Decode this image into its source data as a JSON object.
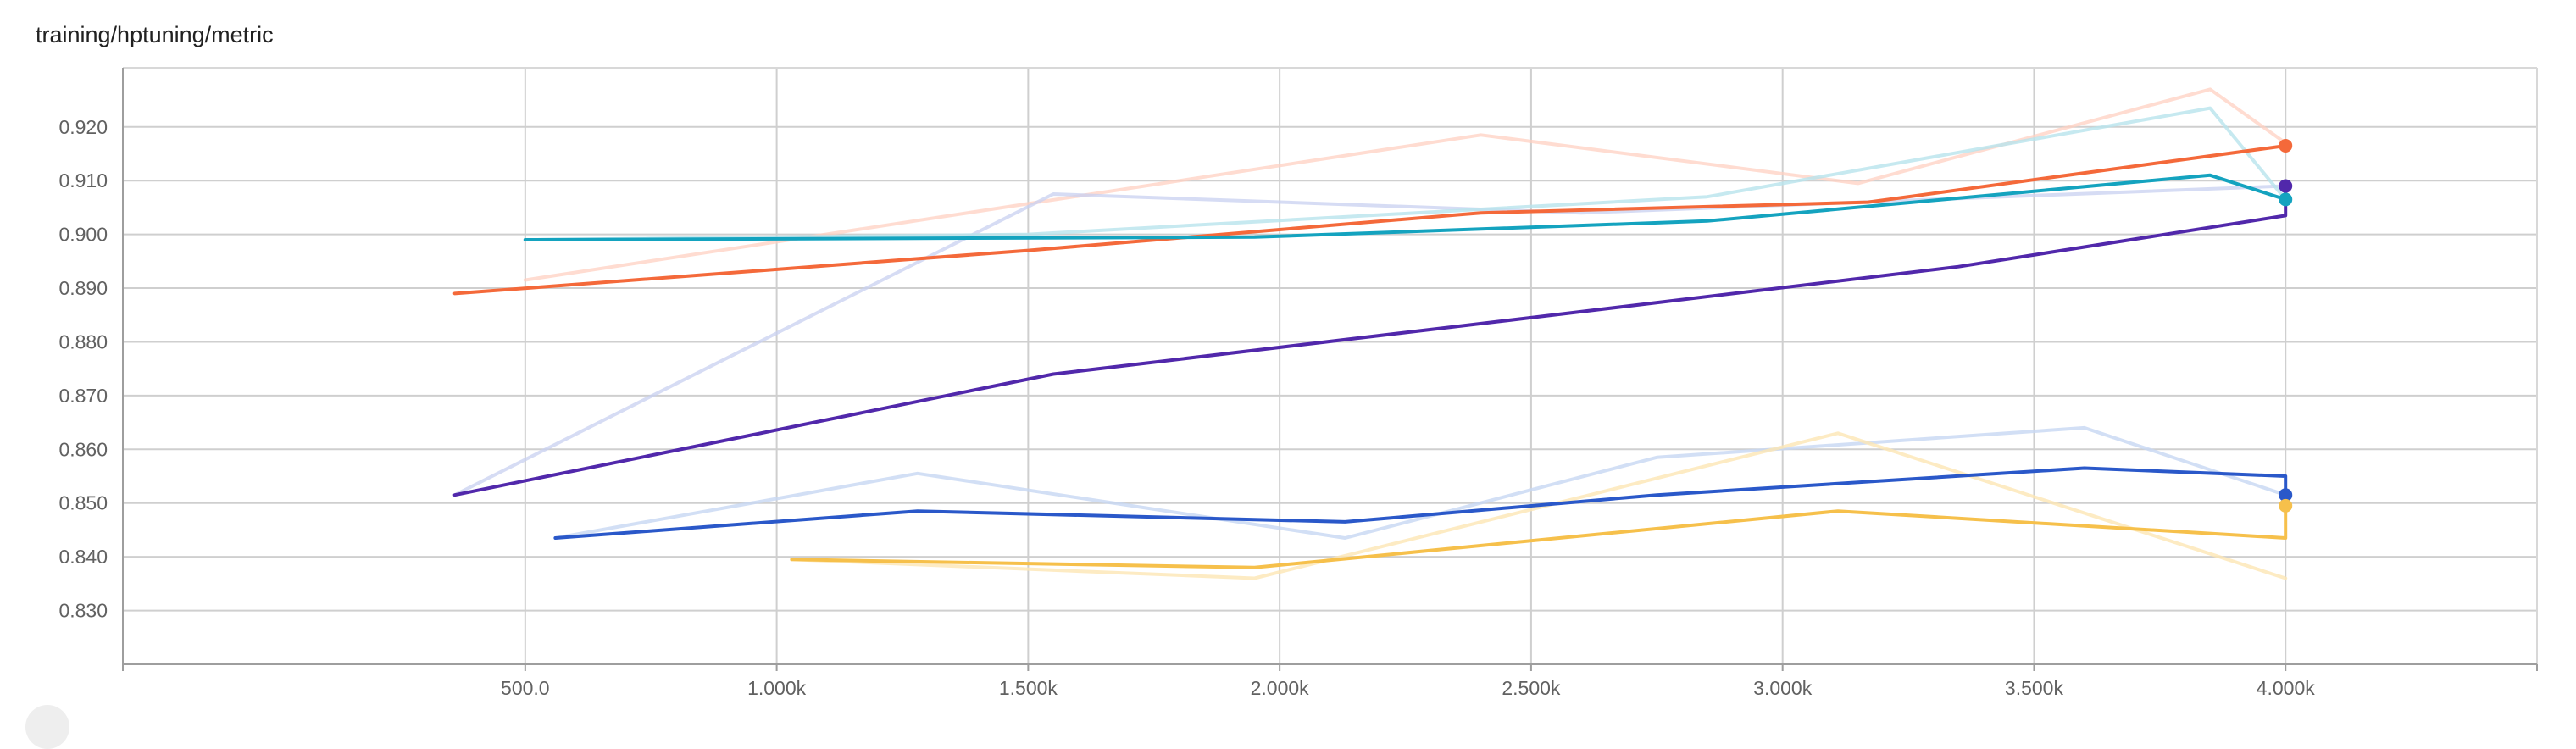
{
  "chart_data": {
    "type": "line",
    "title": "training/hptuning/metric",
    "xlabel": "",
    "ylabel": "",
    "xlim": [
      -300,
      4500
    ],
    "ylim": [
      0.82,
      0.931
    ],
    "x_ticks": [
      500,
      1000,
      1500,
      2000,
      2500,
      3000,
      3500,
      4000
    ],
    "x_tick_labels": [
      "500.0",
      "1.000k",
      "1.500k",
      "2.000k",
      "2.500k",
      "3.000k",
      "3.500k",
      "4.000k"
    ],
    "y_ticks": [
      0.83,
      0.84,
      0.85,
      0.86,
      0.87,
      0.88,
      0.89,
      0.9,
      0.91,
      0.92
    ],
    "y_tick_labels": [
      "0.830",
      "0.840",
      "0.850",
      "0.860",
      "0.870",
      "0.880",
      "0.890",
      "0.900",
      "0.910",
      "0.920"
    ],
    "grid": true,
    "series": [
      {
        "color": "#ffd0c2",
        "opacity": 0.75,
        "marker": false,
        "x": [
          500,
          2400,
          3150,
          3850,
          4000
        ],
        "y": [
          0.8915,
          0.9185,
          0.9095,
          0.927,
          0.917
        ]
      },
      {
        "color": "#c8d0f0",
        "opacity": 0.75,
        "marker": false,
        "x": [
          360,
          1550,
          2600,
          4000
        ],
        "y": [
          0.8515,
          0.9075,
          0.904,
          0.909
        ]
      },
      {
        "color": "#b8e4ec",
        "opacity": 0.8,
        "marker": false,
        "x": [
          500,
          1500,
          2850,
          3850,
          4000
        ],
        "y": [
          0.899,
          0.9,
          0.907,
          0.9235,
          0.9065
        ]
      },
      {
        "color": "#c7d7f2",
        "opacity": 0.8,
        "marker": false,
        "x": [
          560,
          1280,
          2130,
          2750,
          3600,
          4000
        ],
        "y": [
          0.8435,
          0.8555,
          0.8435,
          0.8585,
          0.864,
          0.8515
        ]
      },
      {
        "color": "#fde6b4",
        "opacity": 0.8,
        "marker": false,
        "x": [
          1030,
          1950,
          3110,
          4000
        ],
        "y": [
          0.8395,
          0.836,
          0.863,
          0.836
        ]
      },
      {
        "color": "#f4693a",
        "opacity": 1,
        "marker": true,
        "x": [
          360,
          1500,
          2400,
          3170,
          4000
        ],
        "y": [
          0.889,
          0.897,
          0.904,
          0.906,
          0.9165
        ]
      },
      {
        "color": "#14a3bf",
        "opacity": 1,
        "marker": true,
        "x": [
          500,
          1950,
          2850,
          3850,
          4000
        ],
        "y": [
          0.899,
          0.8995,
          0.9025,
          0.911,
          0.9065
        ]
      },
      {
        "color": "#5128ab",
        "opacity": 1,
        "marker": true,
        "x": [
          360,
          1550,
          2500,
          3350,
          4000,
          4000
        ],
        "y": [
          0.8515,
          0.874,
          0.8845,
          0.894,
          0.9035,
          0.909
        ]
      },
      {
        "color": "#2a58c9",
        "opacity": 1,
        "marker": true,
        "x": [
          560,
          1280,
          2130,
          2750,
          3600,
          4000,
          4000
        ],
        "y": [
          0.8435,
          0.8485,
          0.8465,
          0.8515,
          0.8565,
          0.855,
          0.8515
        ]
      },
      {
        "color": "#f6c04b",
        "opacity": 1,
        "marker": true,
        "x": [
          1030,
          1950,
          3110,
          4000,
          4000
        ],
        "y": [
          0.8395,
          0.838,
          0.8485,
          0.8435,
          0.8495
        ]
      }
    ]
  }
}
